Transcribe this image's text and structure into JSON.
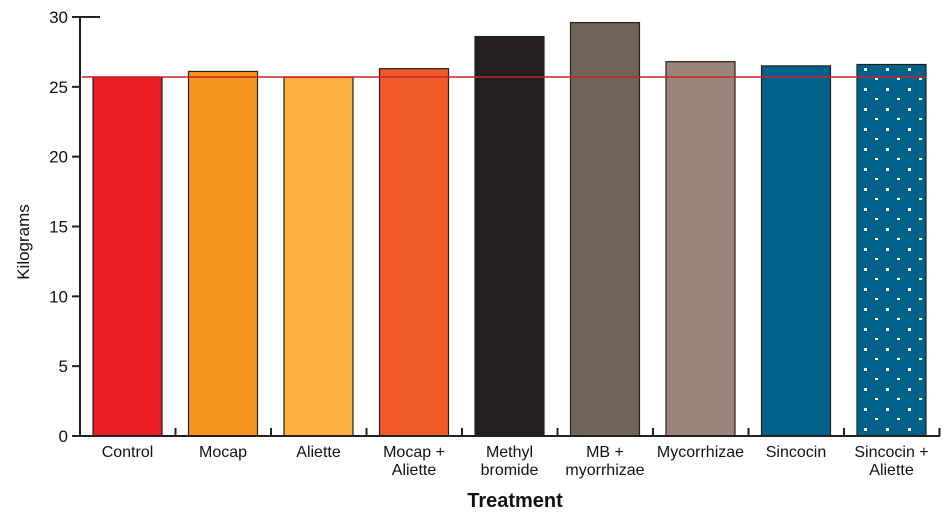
{
  "chart_data": {
    "type": "bar",
    "title": "",
    "xlabel": "Treatment",
    "ylabel": "Kilograms",
    "ylim": [
      0,
      30
    ],
    "yticks": [
      0,
      5,
      10,
      15,
      20,
      25,
      30
    ],
    "grid": false,
    "reference_line": {
      "value": 25.7,
      "color": "#c8202a"
    },
    "categories": [
      [
        "Control"
      ],
      [
        "Mocap"
      ],
      [
        "Aliette"
      ],
      [
        "Mocap +",
        "Aliette"
      ],
      [
        "Methyl",
        "bromide"
      ],
      [
        "MB +",
        "myorrhizae"
      ],
      [
        "Mycorrhizae"
      ],
      [
        "Sincocin"
      ],
      [
        "Sincocin +",
        "Aliette"
      ]
    ],
    "values": [
      25.7,
      26.1,
      25.7,
      26.3,
      28.6,
      29.6,
      26.8,
      26.5,
      26.6
    ],
    "colors": [
      "#ec1c24",
      "#f7941d",
      "#fbb040",
      "#f15a29",
      "#231f20",
      "#6f6455",
      "#9b8579",
      "#00628b",
      "#00628b"
    ],
    "patterns": [
      "",
      "",
      "",
      "",
      "",
      "",
      "",
      "",
      "dots"
    ]
  }
}
